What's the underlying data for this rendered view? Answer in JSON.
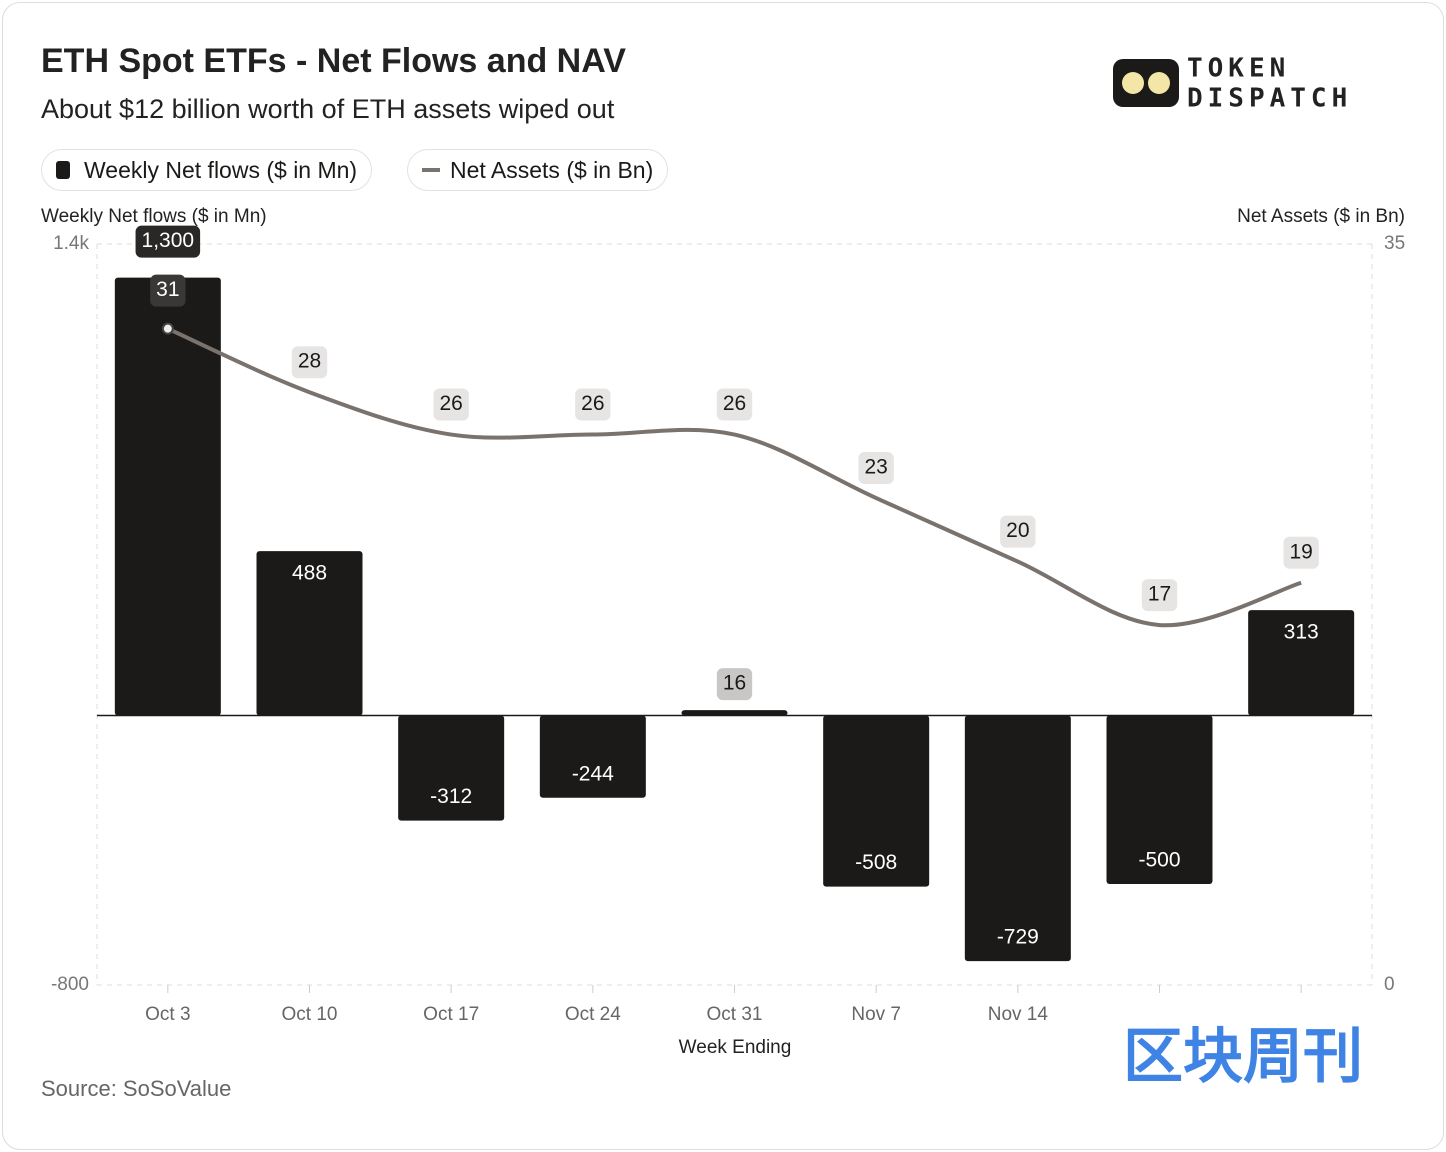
{
  "chart_data": {
    "type": "bar-line",
    "title": "ETH Spot ETFs - Net Flows and NAV",
    "subtitle": "About $12 billion worth of ETH assets wiped out",
    "y_label": "Weekly Net flows ($ in Mn)",
    "y2_label": "Net Assets ($ in Bn)",
    "x_label": "Week Ending",
    "source": "Source: SoSoValue",
    "branding": [
      "TOKEN",
      "DISPATCH",
      "区块周刊"
    ],
    "categories": [
      "Oct 3",
      "Oct 10",
      "Oct 17",
      "Oct 24",
      "Oct 31",
      "Nov 7",
      "Nov 14",
      null,
      null
    ],
    "series": [
      {
        "name": "Weekly Net flows ($ in Mn)",
        "type": "bar",
        "color": "#1c1a18",
        "values": [
          1300,
          488,
          -312,
          -244,
          16,
          -508,
          -729,
          -500,
          313
        ],
        "value_labels": [
          "1,300",
          "488",
          "-312",
          "-244",
          "16",
          "-508",
          "-729",
          "-500",
          "313"
        ]
      },
      {
        "name": "Net Assets ($ in Bn)",
        "type": "line",
        "axis": "y2",
        "color": "#7a726d",
        "values": [
          31,
          28,
          26,
          26,
          26,
          23,
          20,
          17,
          19
        ]
      }
    ],
    "ylim": [
      -800,
      1400
    ],
    "yticks": [
      -800,
      {
        "value": 1400,
        "label": "1.4k"
      }
    ],
    "y2lim": [
      0,
      35
    ],
    "y2ticks": [
      0,
      35
    ],
    "grid": true
  }
}
